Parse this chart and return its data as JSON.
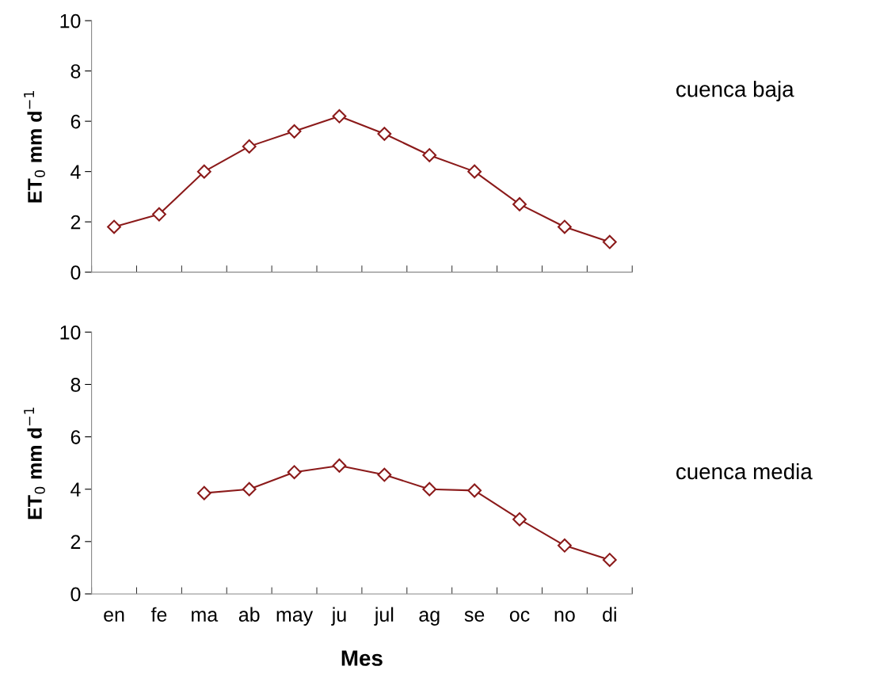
{
  "chart_data": [
    {
      "type": "line",
      "ylabel": "ET$_{0}$ mm d$^{−1}$",
      "categories": [
        null,
        null,
        null,
        null,
        null,
        null,
        null,
        null,
        null,
        null,
        null,
        null
      ],
      "ylim": [
        0,
        10
      ],
      "yticks": [
        0,
        2,
        4,
        6,
        8,
        10
      ],
      "tick_labels": "y",
      "marker": "diamond",
      "line_style": "solid",
      "series": [
        {
          "name": "cuenca baja",
          "color": "#8b1a1a",
          "values": [
            1.8,
            2.3,
            4.0,
            5.0,
            5.6,
            6.2,
            5.5,
            4.65,
            4.0,
            2.7,
            1.8,
            1.2
          ]
        }
      ]
    },
    {
      "type": "line",
      "ylabel": "ET$_{0}$ mm d$^{−1}$",
      "xlabel": "Mes",
      "categories": [
        "en",
        "fe",
        "ma",
        "ab",
        "may",
        "ju",
        "jul",
        "ag",
        "se",
        "oc",
        "no",
        "di"
      ],
      "ylim": [
        0,
        10
      ],
      "yticks": [
        0,
        2,
        4,
        6,
        8,
        10
      ],
      "marker": "diamond",
      "line_style": "solid",
      "series": [
        {
          "name": "cuenca media",
          "color": "#8b1a1a",
          "values": [
            null,
            null,
            3.85,
            4.0,
            4.65,
            4.9,
            4.55,
            4.0,
            3.95,
            2.85,
            1.85,
            1.3
          ]
        }
      ]
    }
  ]
}
